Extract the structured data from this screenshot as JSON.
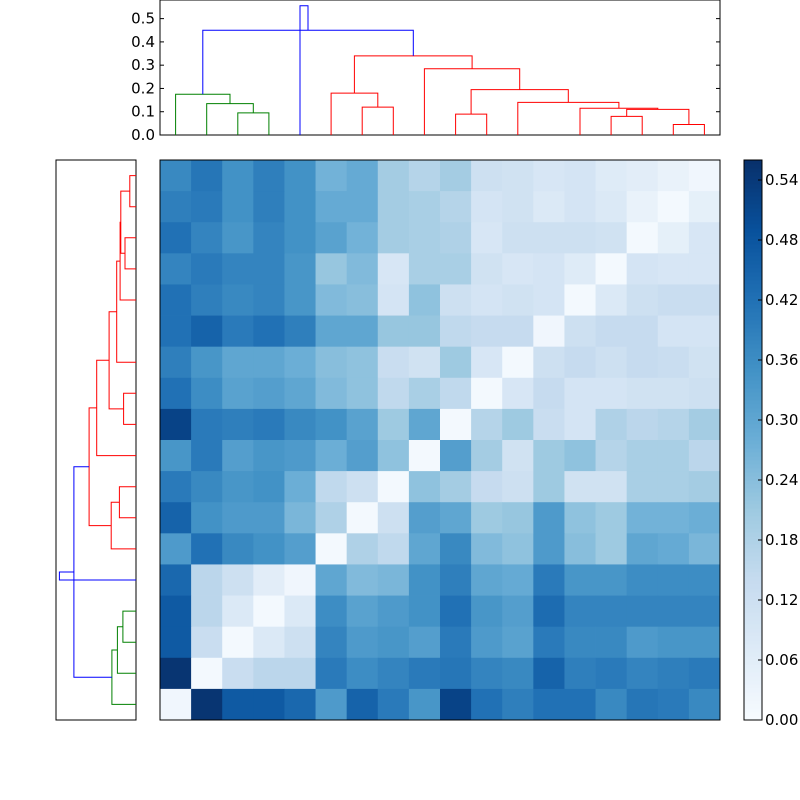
{
  "chart_data": [
    {
      "type": "heatmap",
      "title": "",
      "xlabel": "",
      "ylabel": "",
      "rows": 18,
      "cols": 18,
      "grid": false,
      "colormap": "Blues",
      "colorbar": {
        "min": 0.0,
        "max": 0.56,
        "ticks": [
          0.0,
          0.06,
          0.12,
          0.18,
          0.24,
          0.3,
          0.36,
          0.42,
          0.48,
          0.54
        ],
        "tick_labels": [
          "0.00",
          "0.06",
          "0.12",
          "0.18",
          "0.24",
          "0.30",
          "0.36",
          "0.42",
          "0.48",
          "0.54"
        ],
        "placement": "right"
      },
      "values": [
        [
          0.37,
          0.41,
          0.35,
          0.39,
          0.35,
          0.27,
          0.29,
          0.2,
          0.17,
          0.2,
          0.12,
          0.11,
          0.09,
          0.1,
          0.07,
          0.06,
          0.04,
          0.02
        ],
        [
          0.39,
          0.4,
          0.35,
          0.39,
          0.35,
          0.29,
          0.29,
          0.2,
          0.19,
          0.17,
          0.1,
          0.11,
          0.08,
          0.1,
          0.08,
          0.04,
          0.01,
          0.05
        ],
        [
          0.42,
          0.38,
          0.34,
          0.38,
          0.35,
          0.31,
          0.27,
          0.2,
          0.19,
          0.18,
          0.09,
          0.12,
          0.12,
          0.12,
          0.11,
          0.01,
          0.05,
          0.09
        ],
        [
          0.38,
          0.4,
          0.38,
          0.38,
          0.34,
          0.22,
          0.25,
          0.09,
          0.19,
          0.19,
          0.11,
          0.09,
          0.1,
          0.07,
          0.01,
          0.1,
          0.09,
          0.09
        ],
        [
          0.42,
          0.39,
          0.37,
          0.38,
          0.34,
          0.25,
          0.24,
          0.1,
          0.23,
          0.12,
          0.1,
          0.11,
          0.1,
          0.01,
          0.08,
          0.12,
          0.13,
          0.13
        ],
        [
          0.42,
          0.45,
          0.4,
          0.42,
          0.39,
          0.3,
          0.3,
          0.22,
          0.22,
          0.15,
          0.14,
          0.14,
          0.02,
          0.12,
          0.14,
          0.14,
          0.1,
          0.1
        ],
        [
          0.39,
          0.34,
          0.3,
          0.3,
          0.28,
          0.24,
          0.23,
          0.13,
          0.11,
          0.21,
          0.09,
          0.01,
          0.12,
          0.14,
          0.12,
          0.14,
          0.13,
          0.11
        ],
        [
          0.42,
          0.36,
          0.31,
          0.32,
          0.3,
          0.25,
          0.23,
          0.15,
          0.19,
          0.15,
          0.01,
          0.09,
          0.14,
          0.1,
          0.1,
          0.11,
          0.11,
          0.12
        ],
        [
          0.52,
          0.4,
          0.39,
          0.4,
          0.37,
          0.35,
          0.31,
          0.21,
          0.3,
          0.01,
          0.17,
          0.21,
          0.13,
          0.1,
          0.18,
          0.16,
          0.17,
          0.2
        ],
        [
          0.34,
          0.4,
          0.32,
          0.34,
          0.33,
          0.28,
          0.32,
          0.23,
          0.01,
          0.32,
          0.2,
          0.11,
          0.21,
          0.23,
          0.17,
          0.19,
          0.19,
          0.16
        ],
        [
          0.4,
          0.37,
          0.34,
          0.35,
          0.28,
          0.15,
          0.12,
          0.01,
          0.23,
          0.2,
          0.14,
          0.12,
          0.21,
          0.11,
          0.11,
          0.19,
          0.19,
          0.2
        ],
        [
          0.45,
          0.35,
          0.33,
          0.33,
          0.26,
          0.18,
          0.01,
          0.12,
          0.32,
          0.3,
          0.21,
          0.22,
          0.33,
          0.23,
          0.21,
          0.27,
          0.27,
          0.28
        ],
        [
          0.33,
          0.42,
          0.37,
          0.35,
          0.32,
          0.01,
          0.18,
          0.15,
          0.3,
          0.37,
          0.25,
          0.23,
          0.33,
          0.24,
          0.21,
          0.3,
          0.29,
          0.26
        ],
        [
          0.44,
          0.16,
          0.12,
          0.06,
          0.02,
          0.3,
          0.25,
          0.26,
          0.35,
          0.39,
          0.3,
          0.29,
          0.4,
          0.34,
          0.34,
          0.36,
          0.36,
          0.36
        ],
        [
          0.47,
          0.16,
          0.08,
          0.01,
          0.08,
          0.36,
          0.31,
          0.33,
          0.35,
          0.42,
          0.34,
          0.32,
          0.43,
          0.38,
          0.38,
          0.38,
          0.38,
          0.38
        ],
        [
          0.47,
          0.13,
          0.01,
          0.08,
          0.12,
          0.38,
          0.33,
          0.34,
          0.32,
          0.4,
          0.33,
          0.31,
          0.4,
          0.37,
          0.37,
          0.33,
          0.34,
          0.34
        ],
        [
          0.55,
          0.01,
          0.13,
          0.16,
          0.16,
          0.4,
          0.36,
          0.38,
          0.4,
          0.41,
          0.38,
          0.37,
          0.45,
          0.39,
          0.4,
          0.38,
          0.39,
          0.4
        ],
        [
          0.02,
          0.55,
          0.47,
          0.47,
          0.44,
          0.33,
          0.45,
          0.4,
          0.34,
          0.52,
          0.42,
          0.39,
          0.42,
          0.42,
          0.37,
          0.41,
          0.4,
          0.37
        ]
      ]
    },
    {
      "type": "dendrogram",
      "orientation": "top",
      "title": "",
      "ylim": [
        0.0,
        0.58
      ],
      "yticks": [
        0.0,
        0.1,
        0.2,
        0.3,
        0.4,
        0.5
      ],
      "ytick_labels": [
        "0.0",
        "0.1",
        "0.2",
        "0.3",
        "0.4",
        "0.5"
      ],
      "leaf_count": 18,
      "merges": [
        {
          "a": 2,
          "b": 3,
          "height": 0.095,
          "color": "#008000"
        },
        {
          "a": 1,
          "b": 18,
          "height": 0.135,
          "color": "#008000"
        },
        {
          "a": 0,
          "b": 19,
          "height": 0.175,
          "color": "#008000"
        },
        {
          "a": 6,
          "b": 7,
          "height": 0.12,
          "color": "#ff0000"
        },
        {
          "a": 5,
          "b": 21,
          "height": 0.18,
          "color": "#ff0000"
        },
        {
          "a": 16,
          "b": 17,
          "height": 0.045,
          "color": "#ff0000"
        },
        {
          "a": 14,
          "b": 15,
          "height": 0.08,
          "color": "#ff0000"
        },
        {
          "a": 24,
          "b": 23,
          "height": 0.11,
          "color": "#ff0000"
        },
        {
          "a": 13,
          "b": 25,
          "height": 0.115,
          "color": "#ff0000"
        },
        {
          "a": 9,
          "b": 10,
          "height": 0.09,
          "color": "#ff0000"
        },
        {
          "a": 11,
          "b": 26,
          "height": 0.14,
          "color": "#ff0000"
        },
        {
          "a": 27,
          "b": 28,
          "height": 0.195,
          "color": "#ff0000"
        },
        {
          "a": 8,
          "b": 29,
          "height": 0.285,
          "color": "#ff0000"
        },
        {
          "a": 22,
          "b": 30,
          "height": 0.34,
          "color": "#ff0000"
        },
        {
          "a": 20,
          "b": 31,
          "height": 0.45,
          "color": "#0000ff"
        },
        {
          "a": 4,
          "b": 32,
          "height": 0.555,
          "color": "#0000ff"
        }
      ]
    }
  ]
}
